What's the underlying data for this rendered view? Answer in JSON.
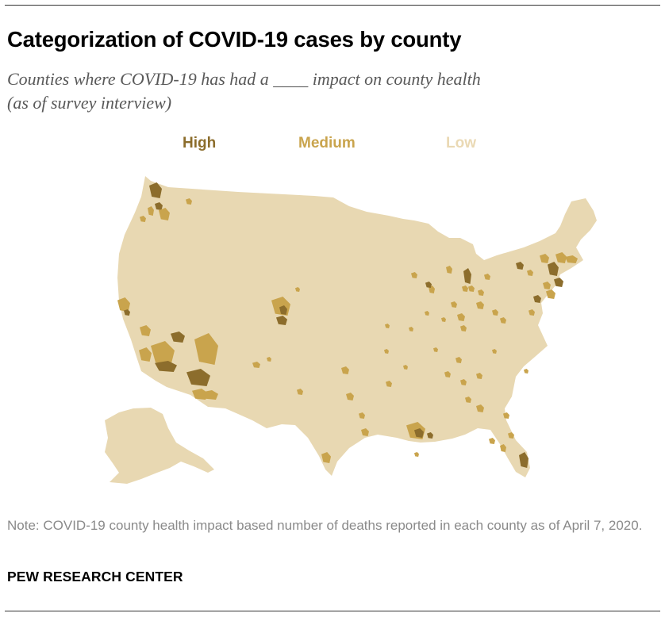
{
  "title": "Categorization of COVID-19 cases by county",
  "subtitle": "Counties where COVID-19 has had a ____ impact on county health\n (as of survey interview)",
  "legend": [
    {
      "label": "High",
      "color": "#8c6d2c"
    },
    {
      "label": "Medium",
      "color": "#c9a44d"
    },
    {
      "label": "Low",
      "color": "#ead9b4"
    }
  ],
  "map": {
    "land_color": "#e8d8b2"
  },
  "note": "Note: COVID-19 county health impact based number of deaths reported in each county as of April 7, 2020.",
  "source": "PEW RESEARCH CENTER"
}
